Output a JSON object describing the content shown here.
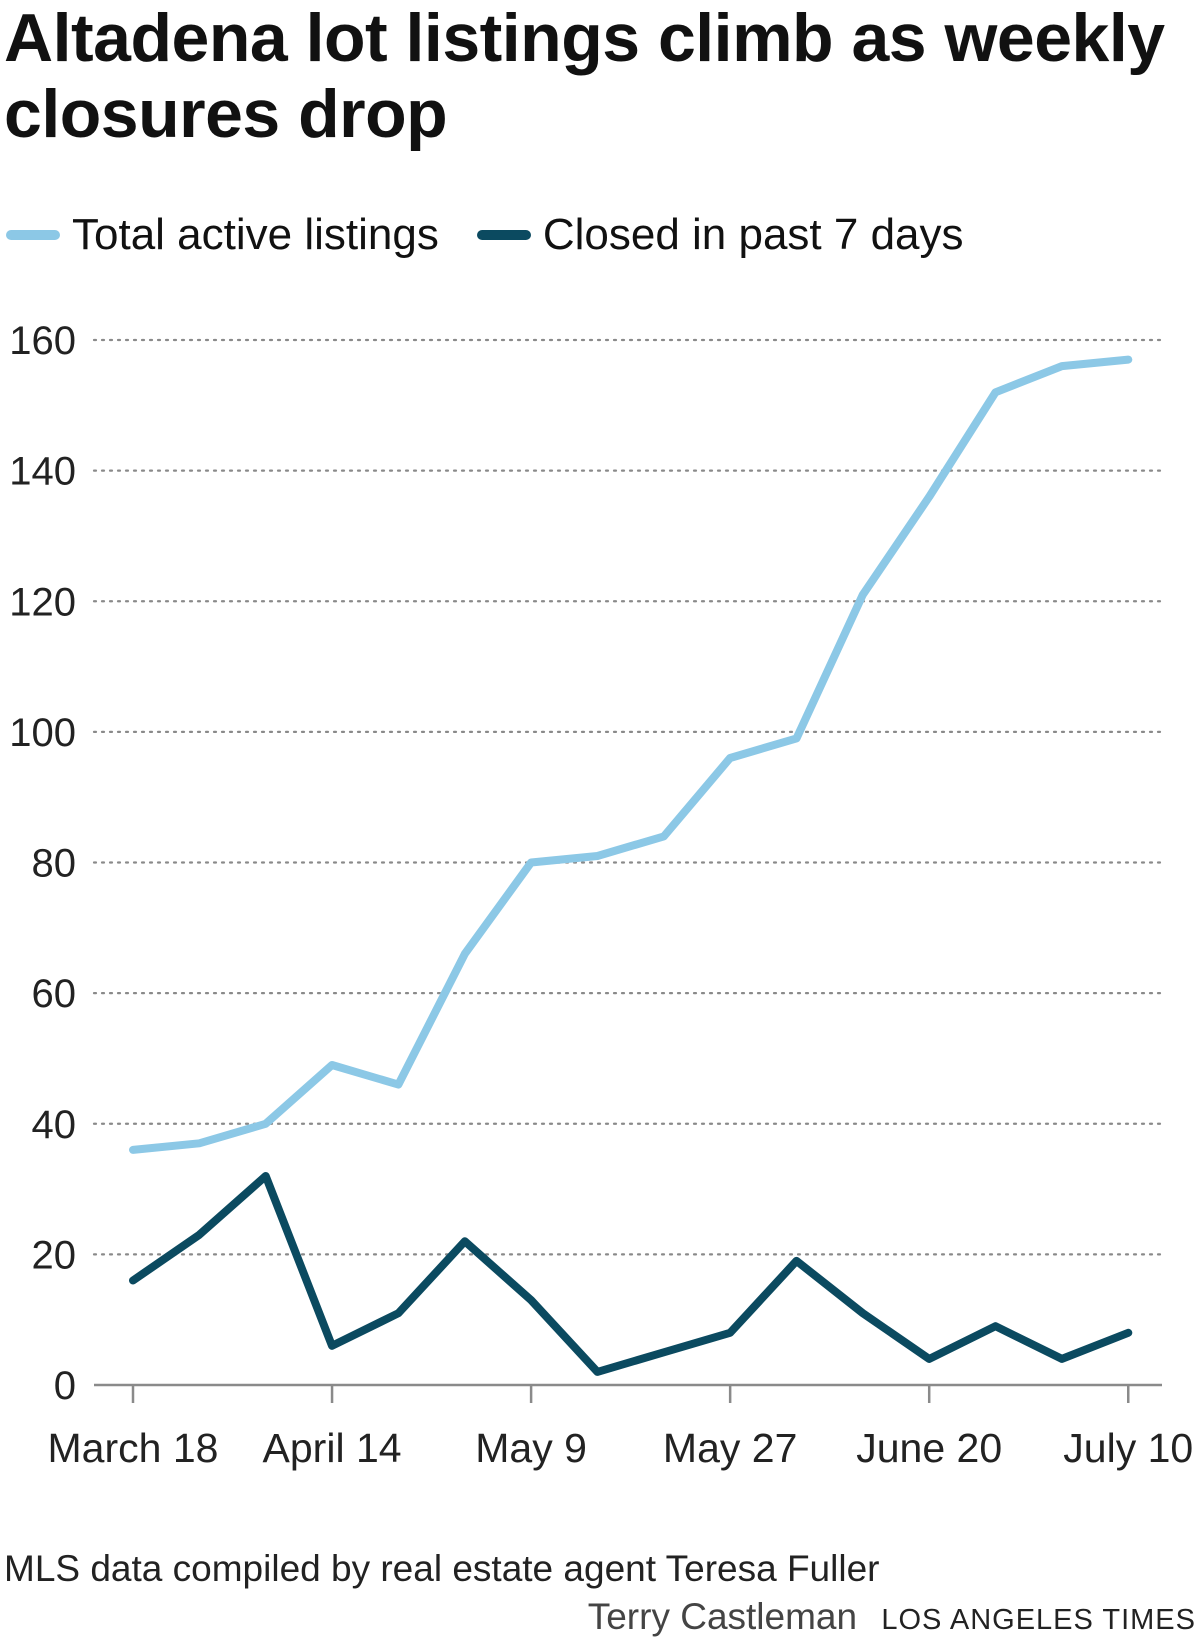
{
  "title": "Altadena lot listings climb as weekly closures drop",
  "legend": [
    {
      "label": "Total active listings",
      "color": "#8cc8e6"
    },
    {
      "label": "Closed in past 7 days",
      "color": "#0b4a60"
    }
  ],
  "source": "MLS data compiled by real estate agent Teresa Fuller",
  "credit": {
    "author": "Terry Castleman",
    "organization": "LOS ANGELES TIMES"
  },
  "chart_data": {
    "type": "line",
    "title": "Altadena lot listings climb as weekly closures drop",
    "xlabel": "",
    "ylabel": "",
    "ylim": [
      0,
      160
    ],
    "yticks": [
      0,
      20,
      40,
      60,
      80,
      100,
      120,
      140,
      160
    ],
    "xticks": [
      "March 18",
      "April 14",
      "May 9",
      "May 27",
      "June 20",
      "July 10"
    ],
    "grid": true,
    "legend_position": "top",
    "series": [
      {
        "name": "Total active listings",
        "color": "#8cc8e6",
        "values": [
          36,
          37,
          40,
          49,
          46,
          66,
          80,
          81,
          84,
          96,
          99,
          121,
          136,
          152,
          156,
          157
        ]
      },
      {
        "name": "Closed in past 7 days",
        "color": "#0b4a60",
        "values": [
          16,
          23,
          32,
          6,
          11,
          22,
          13,
          2,
          5,
          8,
          19,
          11,
          4,
          9,
          4,
          8
        ]
      }
    ]
  }
}
